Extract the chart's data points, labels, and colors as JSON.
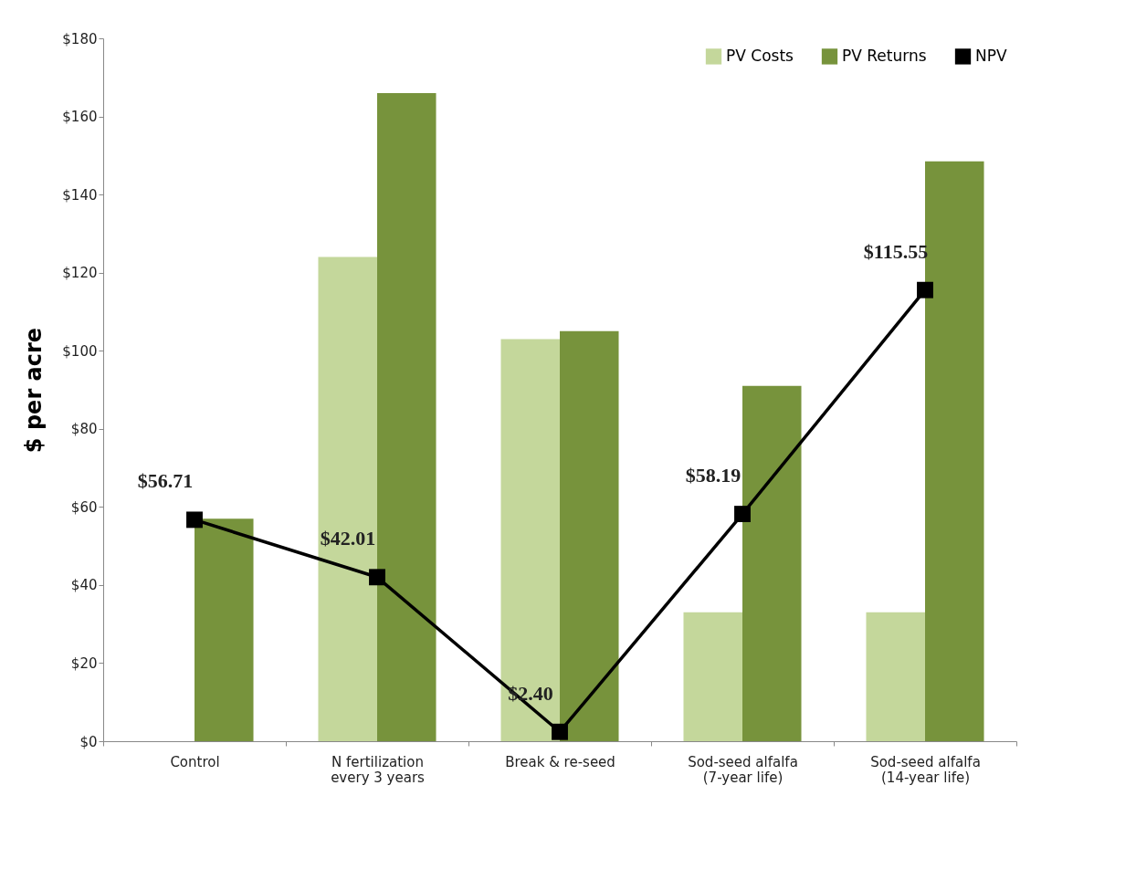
{
  "chart_data": {
    "type": "bar",
    "ylabel": "$ per acre",
    "categories": [
      "Control",
      "N fertilization\nevery 3 years",
      "Break & re-seed",
      "Sod-seed alfalfa\n(7-year life)",
      "Sod-seed alfalfa\n(14-year life)"
    ],
    "series": [
      {
        "name": "PV Costs",
        "color": "#c4d79b",
        "values": [
          0,
          124,
          103,
          33,
          33
        ]
      },
      {
        "name": "PV Returns",
        "color": "#77933c",
        "values": [
          57,
          166,
          105,
          91,
          148.5
        ]
      },
      {
        "name": "NPV",
        "type": "line",
        "color": "#000000",
        "marker": "square",
        "values": [
          56.71,
          42.01,
          2.4,
          58.19,
          115.55
        ],
        "value_labels": [
          "$56.71",
          "$42.01",
          "$2.40",
          "$58.19",
          "$115.55"
        ]
      }
    ],
    "ylim": [
      0,
      180
    ],
    "yticks": [
      {
        "value": 0,
        "label": "$0"
      },
      {
        "value": 20,
        "label": "$20"
      },
      {
        "value": 40,
        "label": "$40"
      },
      {
        "value": 60,
        "label": "$60"
      },
      {
        "value": 80,
        "label": "$80"
      },
      {
        "value": 100,
        "label": "$100"
      },
      {
        "value": 120,
        "label": "$120"
      },
      {
        "value": 140,
        "label": "$140"
      },
      {
        "value": 160,
        "label": "$160"
      },
      {
        "value": 180,
        "label": "$180"
      }
    ],
    "grid": false,
    "legend": "top right"
  }
}
